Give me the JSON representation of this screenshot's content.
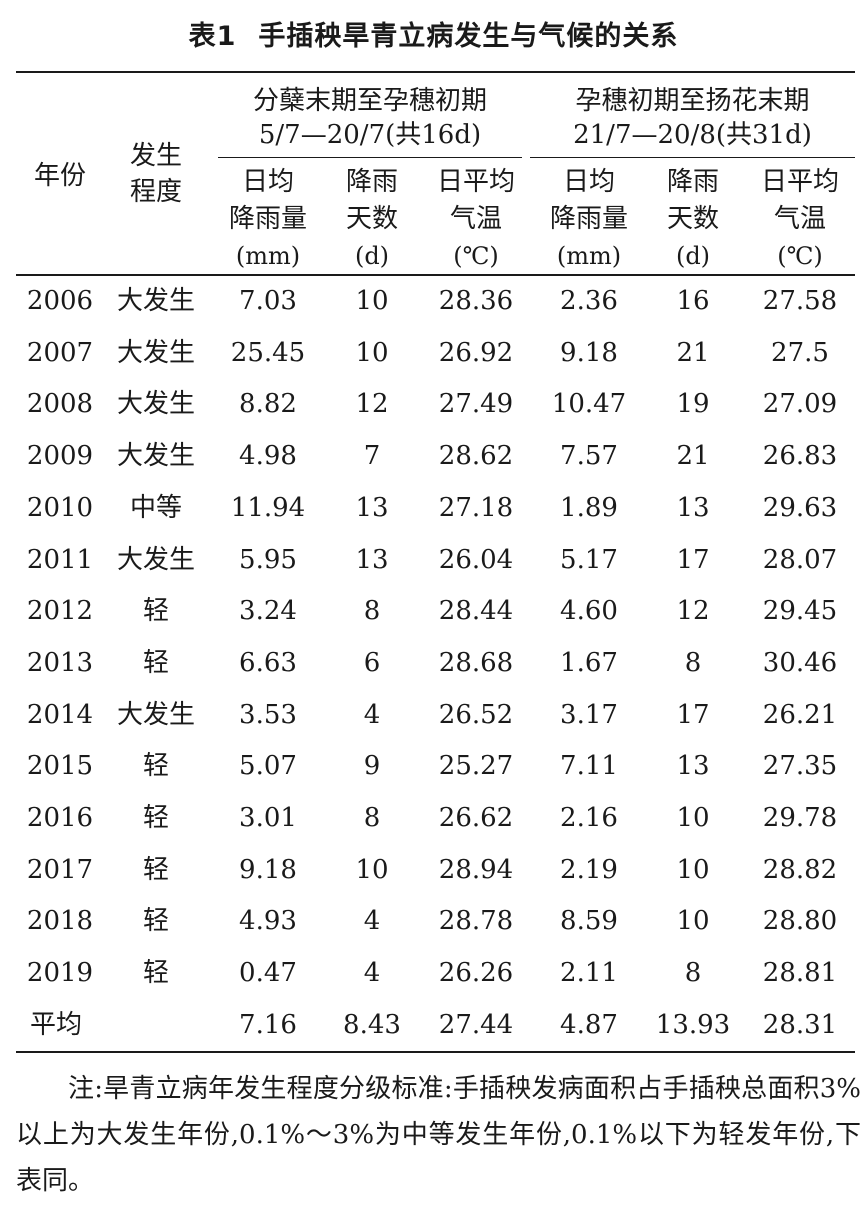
{
  "table": {
    "label": "表1",
    "title": "手插秧旱青立病发生与气候的关系",
    "header": {
      "year": "年份",
      "degree_line1": "发生",
      "degree_line2": "程度",
      "period1_line1": "分蘖末期至孕穗初期",
      "period1_line2": "5/7—20/7(共16d)",
      "period2_line1": "孕穗初期至扬花末期",
      "period2_line2": "21/7—20/8(共31d)",
      "rain_line1": "日均",
      "rain_line2": "降雨量",
      "rain_unit": "(mm)",
      "days_line1": "降雨",
      "days_line2": "天数",
      "days_unit": "(d)",
      "temp_line1": "日平均",
      "temp_line2": "气温",
      "temp_unit": "(℃)"
    },
    "rows": [
      {
        "year": "2006",
        "degree": "大发生",
        "rain1": "7.03",
        "days1": "10",
        "temp1": "28.36",
        "rain2": "2.36",
        "days2": "16",
        "temp2": "27.58"
      },
      {
        "year": "2007",
        "degree": "大发生",
        "rain1": "25.45",
        "days1": "10",
        "temp1": "26.92",
        "rain2": "9.18",
        "days2": "21",
        "temp2": "27.5"
      },
      {
        "year": "2008",
        "degree": "大发生",
        "rain1": "8.82",
        "days1": "12",
        "temp1": "27.49",
        "rain2": "10.47",
        "days2": "19",
        "temp2": "27.09"
      },
      {
        "year": "2009",
        "degree": "大发生",
        "rain1": "4.98",
        "days1": "7",
        "temp1": "28.62",
        "rain2": "7.57",
        "days2": "21",
        "temp2": "26.83"
      },
      {
        "year": "2010",
        "degree": "中等",
        "rain1": "11.94",
        "days1": "13",
        "temp1": "27.18",
        "rain2": "1.89",
        "days2": "13",
        "temp2": "29.63"
      },
      {
        "year": "2011",
        "degree": "大发生",
        "rain1": "5.95",
        "days1": "13",
        "temp1": "26.04",
        "rain2": "5.17",
        "days2": "17",
        "temp2": "28.07"
      },
      {
        "year": "2012",
        "degree": "轻",
        "rain1": "3.24",
        "days1": "8",
        "temp1": "28.44",
        "rain2": "4.60",
        "days2": "12",
        "temp2": "29.45"
      },
      {
        "year": "2013",
        "degree": "轻",
        "rain1": "6.63",
        "days1": "6",
        "temp1": "28.68",
        "rain2": "1.67",
        "days2": "8",
        "temp2": "30.46"
      },
      {
        "year": "2014",
        "degree": "大发生",
        "rain1": "3.53",
        "days1": "4",
        "temp1": "26.52",
        "rain2": "3.17",
        "days2": "17",
        "temp2": "26.21"
      },
      {
        "year": "2015",
        "degree": "轻",
        "rain1": "5.07",
        "days1": "9",
        "temp1": "25.27",
        "rain2": "7.11",
        "days2": "13",
        "temp2": "27.35"
      },
      {
        "year": "2016",
        "degree": "轻",
        "rain1": "3.01",
        "days1": "8",
        "temp1": "26.62",
        "rain2": "2.16",
        "days2": "10",
        "temp2": "29.78"
      },
      {
        "year": "2017",
        "degree": "轻",
        "rain1": "9.18",
        "days1": "10",
        "temp1": "28.94",
        "rain2": "2.19",
        "days2": "10",
        "temp2": "28.82"
      },
      {
        "year": "2018",
        "degree": "轻",
        "rain1": "4.93",
        "days1": "4",
        "temp1": "28.78",
        "rain2": "8.59",
        "days2": "10",
        "temp2": "28.80"
      },
      {
        "year": "2019",
        "degree": "轻",
        "rain1": "0.47",
        "days1": "4",
        "temp1": "26.26",
        "rain2": "2.11",
        "days2": "8",
        "temp2": "28.81"
      },
      {
        "year": "平均",
        "degree": "",
        "rain1": "7.16",
        "days1": "8.43",
        "temp1": "27.44",
        "rain2": "4.87",
        "days2": "13.93",
        "temp2": "28.31"
      }
    ],
    "note": "注:旱青立病年发生程度分级标准:手插秧发病面积占手插秧总面积3%以上为大发生年份,0.1%～3%为中等发生年份,0.1%以下为轻发年份,下表同。"
  }
}
